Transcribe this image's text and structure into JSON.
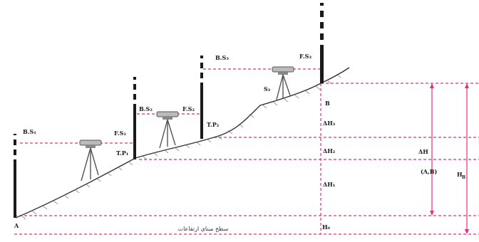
{
  "diagram": {
    "staff_labels": {
      "bs1": "B.S₁",
      "fs1": "F.S₁",
      "tp1": "T.P₁",
      "bs2": "B.S₂",
      "fs2": "F.S₂",
      "tp2": "T.P₂",
      "bs3": "B.S₃",
      "fs3": "F.S₃"
    },
    "instrument_label": "S₃",
    "point_a": "A",
    "point_b": "B",
    "dh_labels": {
      "dh3": "ΔH₃",
      "dh2": "ΔH₂",
      "dh1": "ΔH₁"
    },
    "total_dh": "ΔH",
    "total_dh_ab": "(A,B)",
    "total_h": "H",
    "total_h_sub": "B",
    "base_label": "H₀",
    "datum_caption": "سطح مبنای ارتفاعات"
  },
  "colors": {
    "guide": "#e0307a",
    "staff_dark": "#1a1a1a",
    "instrument": "#555555"
  }
}
